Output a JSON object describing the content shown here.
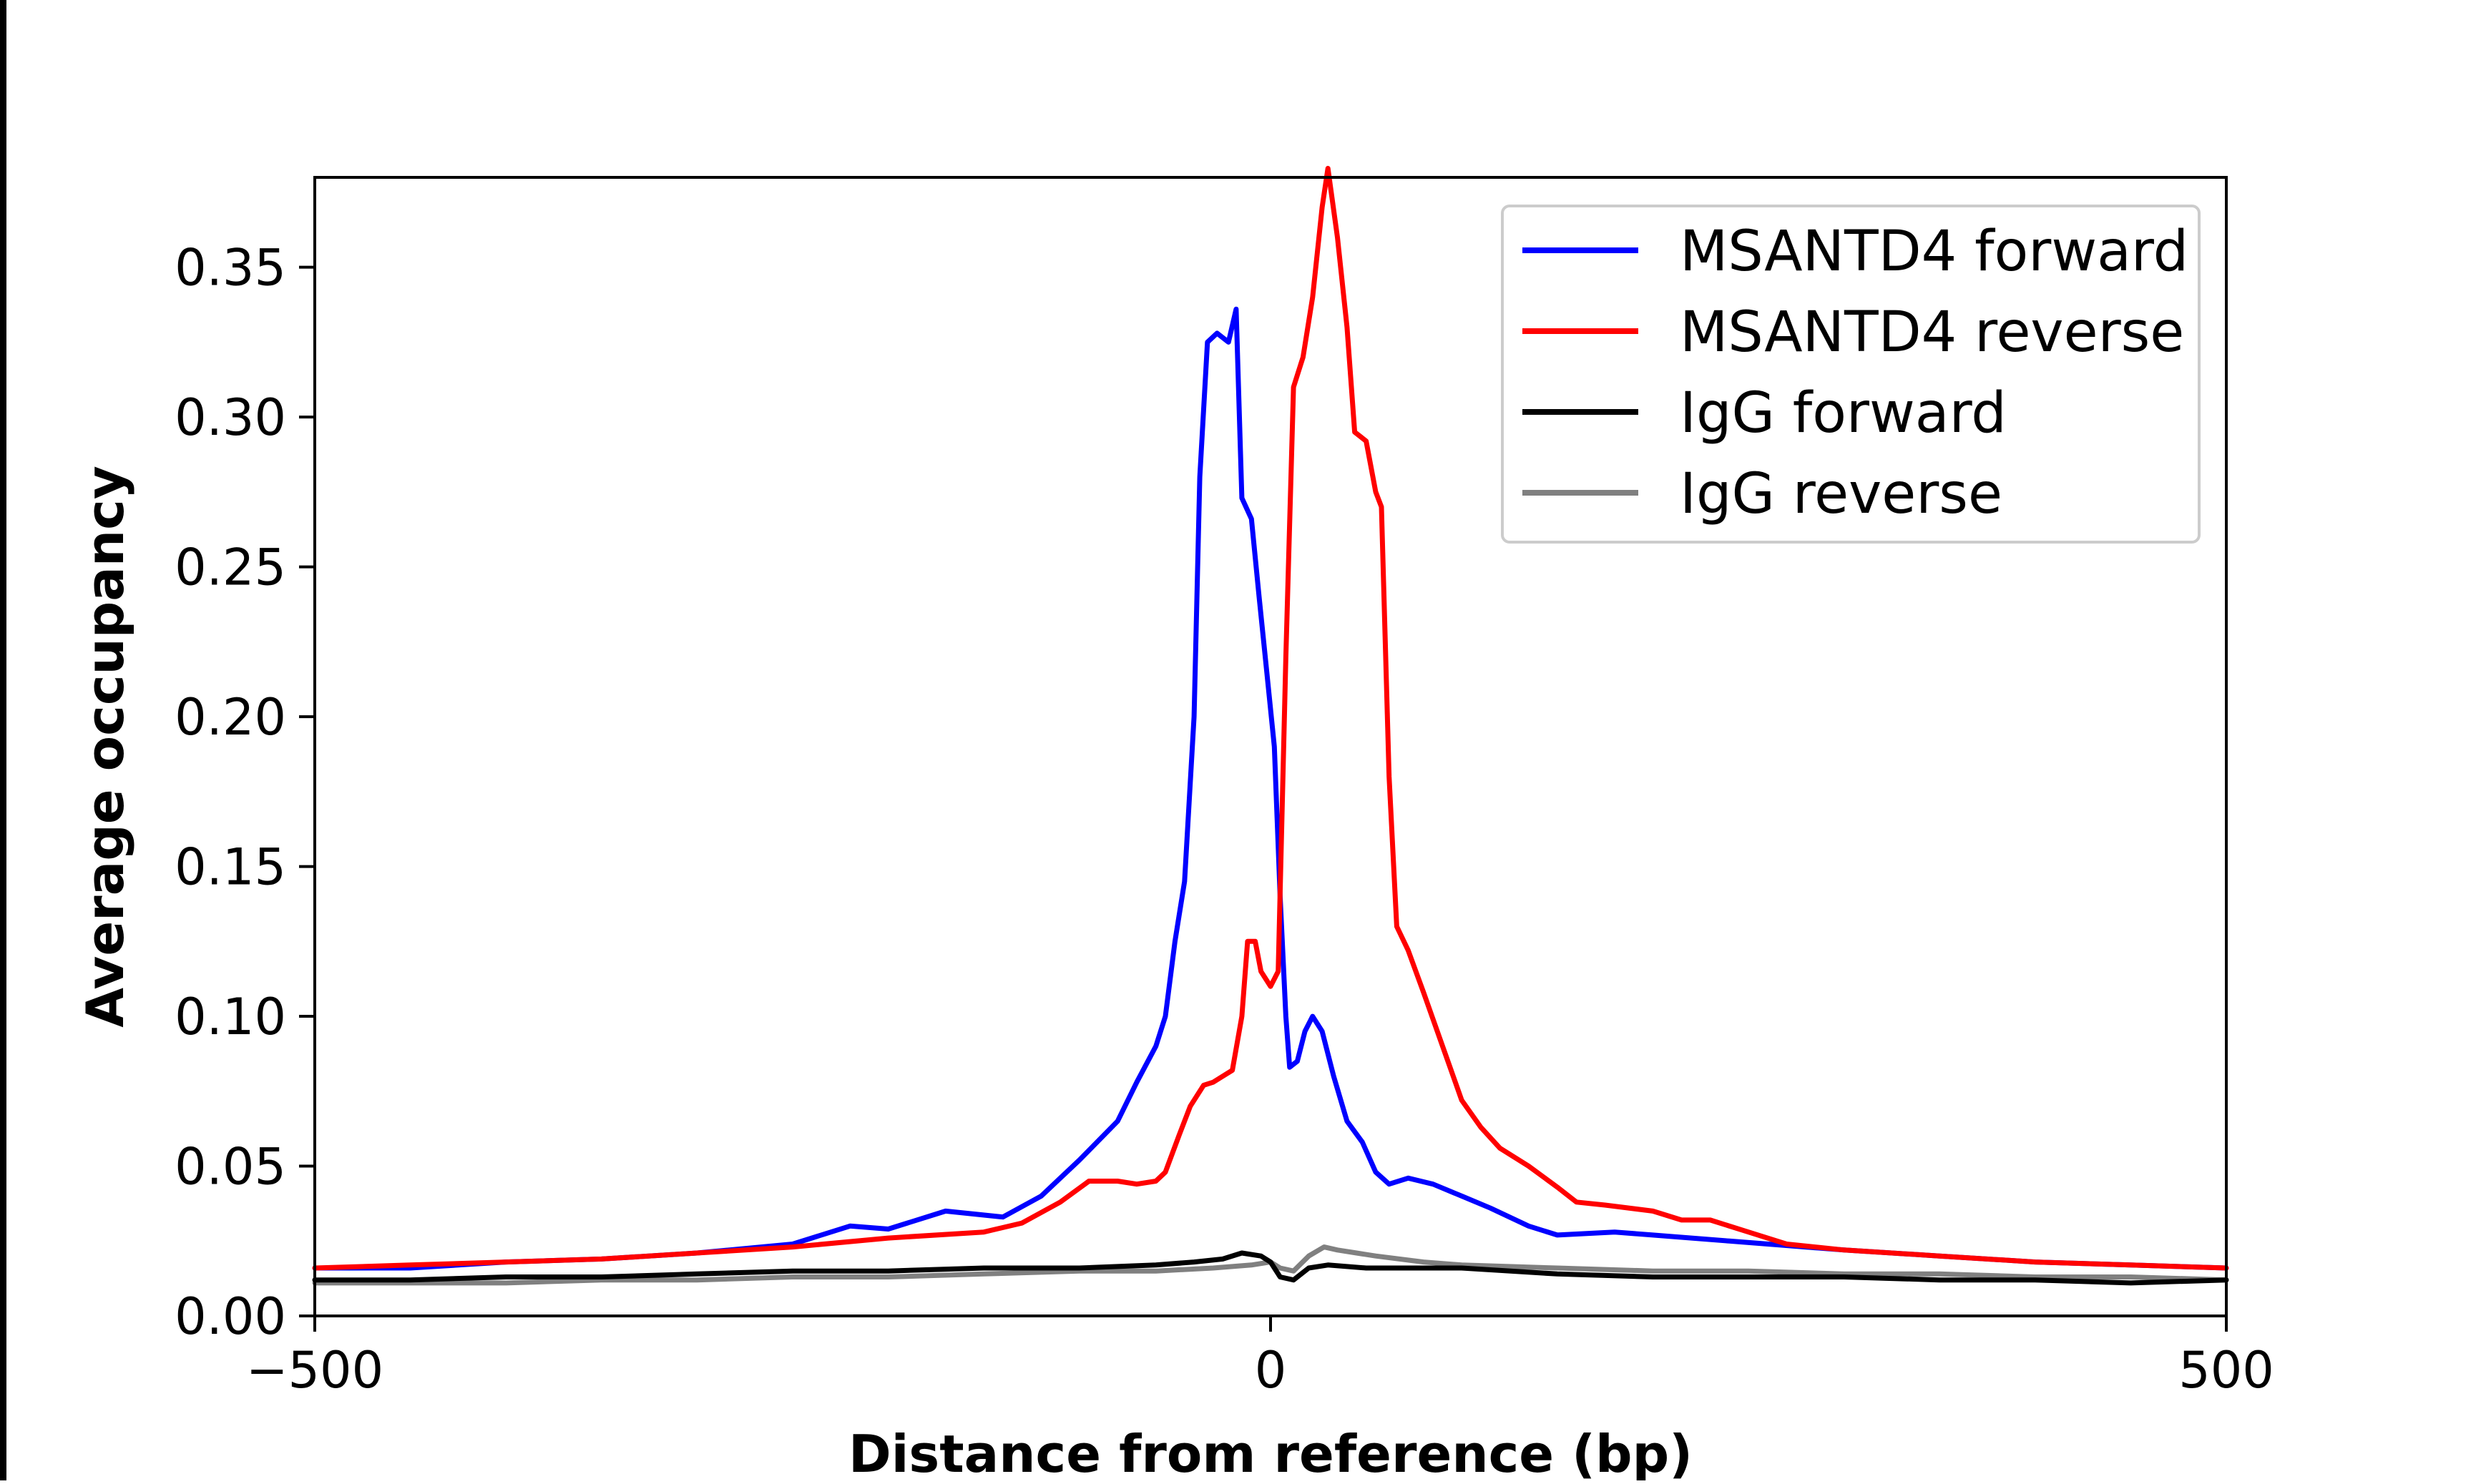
{
  "chart_data": {
    "type": "line",
    "title": "",
    "xlabel": "Distance from reference (bp)",
    "ylabel": "Average occupancy",
    "xlim": [
      -500,
      500
    ],
    "ylim": [
      0,
      0.38
    ],
    "xticks": [
      -500,
      0,
      500
    ],
    "xtick_labels": [
      "−500",
      "0",
      "500"
    ],
    "yticks": [
      0,
      0.05,
      0.1,
      0.15,
      0.2,
      0.25,
      0.3,
      0.35
    ],
    "ytick_labels": [
      "0.00",
      "0.05",
      "0.10",
      "0.15",
      "0.20",
      "0.25",
      "0.30",
      "0.35"
    ],
    "grid": false,
    "legend_position": "top-right",
    "series": [
      {
        "name": "MSANTD4 forward",
        "color": "#0000ff",
        "points": [
          [
            -500,
            0.016
          ],
          [
            -450,
            0.016
          ],
          [
            -400,
            0.018
          ],
          [
            -350,
            0.019
          ],
          [
            -300,
            0.021
          ],
          [
            -250,
            0.024
          ],
          [
            -220,
            0.03
          ],
          [
            -200,
            0.029
          ],
          [
            -170,
            0.035
          ],
          [
            -140,
            0.033
          ],
          [
            -120,
            0.04
          ],
          [
            -100,
            0.052
          ],
          [
            -80,
            0.065
          ],
          [
            -70,
            0.078
          ],
          [
            -60,
            0.09
          ],
          [
            -55,
            0.1
          ],
          [
            -50,
            0.125
          ],
          [
            -45,
            0.145
          ],
          [
            -40,
            0.2
          ],
          [
            -37,
            0.28
          ],
          [
            -33,
            0.325
          ],
          [
            -28,
            0.328
          ],
          [
            -22,
            0.325
          ],
          [
            -18,
            0.336
          ],
          [
            -15,
            0.273
          ],
          [
            -10,
            0.266
          ],
          [
            -6,
            0.24
          ],
          [
            -2,
            0.215
          ],
          [
            2,
            0.19
          ],
          [
            5,
            0.14
          ],
          [
            8,
            0.1
          ],
          [
            10,
            0.083
          ],
          [
            14,
            0.085
          ],
          [
            18,
            0.095
          ],
          [
            22,
            0.1
          ],
          [
            27,
            0.095
          ],
          [
            33,
            0.08
          ],
          [
            40,
            0.065
          ],
          [
            48,
            0.058
          ],
          [
            55,
            0.048
          ],
          [
            62,
            0.044
          ],
          [
            72,
            0.046
          ],
          [
            85,
            0.044
          ],
          [
            100,
            0.04
          ],
          [
            115,
            0.036
          ],
          [
            135,
            0.03
          ],
          [
            150,
            0.027
          ],
          [
            180,
            0.028
          ],
          [
            200,
            0.027
          ],
          [
            240,
            0.025
          ],
          [
            300,
            0.022
          ],
          [
            350,
            0.02
          ],
          [
            400,
            0.018
          ],
          [
            450,
            0.017
          ],
          [
            500,
            0.016
          ]
        ]
      },
      {
        "name": "MSANTD4 reverse",
        "color": "#ff0000",
        "points": [
          [
            -500,
            0.016
          ],
          [
            -450,
            0.017
          ],
          [
            -400,
            0.018
          ],
          [
            -350,
            0.019
          ],
          [
            -300,
            0.021
          ],
          [
            -250,
            0.023
          ],
          [
            -200,
            0.026
          ],
          [
            -150,
            0.028
          ],
          [
            -130,
            0.031
          ],
          [
            -110,
            0.038
          ],
          [
            -95,
            0.045
          ],
          [
            -80,
            0.045
          ],
          [
            -70,
            0.044
          ],
          [
            -60,
            0.045
          ],
          [
            -55,
            0.048
          ],
          [
            -48,
            0.06
          ],
          [
            -42,
            0.07
          ],
          [
            -35,
            0.077
          ],
          [
            -30,
            0.078
          ],
          [
            -25,
            0.08
          ],
          [
            -20,
            0.082
          ],
          [
            -15,
            0.1
          ],
          [
            -12,
            0.125
          ],
          [
            -8,
            0.125
          ],
          [
            -5,
            0.115
          ],
          [
            0,
            0.11
          ],
          [
            4,
            0.115
          ],
          [
            8,
            0.22
          ],
          [
            12,
            0.31
          ],
          [
            17,
            0.32
          ],
          [
            22,
            0.34
          ],
          [
            27,
            0.37
          ],
          [
            30,
            0.383
          ],
          [
            35,
            0.36
          ],
          [
            40,
            0.33
          ],
          [
            44,
            0.295
          ],
          [
            50,
            0.292
          ],
          [
            55,
            0.275
          ],
          [
            58,
            0.27
          ],
          [
            62,
            0.18
          ],
          [
            66,
            0.13
          ],
          [
            72,
            0.122
          ],
          [
            80,
            0.108
          ],
          [
            90,
            0.09
          ],
          [
            100,
            0.072
          ],
          [
            110,
            0.063
          ],
          [
            120,
            0.056
          ],
          [
            135,
            0.05
          ],
          [
            150,
            0.043
          ],
          [
            160,
            0.038
          ],
          [
            175,
            0.037
          ],
          [
            200,
            0.035
          ],
          [
            215,
            0.032
          ],
          [
            230,
            0.032
          ],
          [
            250,
            0.028
          ],
          [
            270,
            0.024
          ],
          [
            300,
            0.022
          ],
          [
            350,
            0.02
          ],
          [
            400,
            0.018
          ],
          [
            450,
            0.017
          ],
          [
            500,
            0.016
          ]
        ]
      },
      {
        "name": "IgG forward",
        "color": "#000000",
        "points": [
          [
            -500,
            0.012
          ],
          [
            -450,
            0.012
          ],
          [
            -400,
            0.013
          ],
          [
            -350,
            0.013
          ],
          [
            -300,
            0.014
          ],
          [
            -250,
            0.015
          ],
          [
            -200,
            0.015
          ],
          [
            -150,
            0.016
          ],
          [
            -100,
            0.016
          ],
          [
            -60,
            0.017
          ],
          [
            -40,
            0.018
          ],
          [
            -25,
            0.019
          ],
          [
            -15,
            0.021
          ],
          [
            -5,
            0.02
          ],
          [
            0,
            0.018
          ],
          [
            5,
            0.013
          ],
          [
            12,
            0.012
          ],
          [
            20,
            0.016
          ],
          [
            30,
            0.017
          ],
          [
            50,
            0.016
          ],
          [
            80,
            0.016
          ],
          [
            100,
            0.016
          ],
          [
            150,
            0.014
          ],
          [
            200,
            0.013
          ],
          [
            250,
            0.013
          ],
          [
            300,
            0.013
          ],
          [
            350,
            0.012
          ],
          [
            400,
            0.012
          ],
          [
            450,
            0.011
          ],
          [
            500,
            0.012
          ]
        ]
      },
      {
        "name": "IgG reverse",
        "color": "#808080",
        "points": [
          [
            -500,
            0.011
          ],
          [
            -450,
            0.011
          ],
          [
            -400,
            0.011
          ],
          [
            -350,
            0.012
          ],
          [
            -300,
            0.012
          ],
          [
            -250,
            0.013
          ],
          [
            -200,
            0.013
          ],
          [
            -150,
            0.014
          ],
          [
            -100,
            0.015
          ],
          [
            -60,
            0.015
          ],
          [
            -30,
            0.016
          ],
          [
            -10,
            0.017
          ],
          [
            0,
            0.018
          ],
          [
            5,
            0.016
          ],
          [
            12,
            0.015
          ],
          [
            20,
            0.02
          ],
          [
            28,
            0.023
          ],
          [
            35,
            0.022
          ],
          [
            45,
            0.021
          ],
          [
            55,
            0.02
          ],
          [
            80,
            0.018
          ],
          [
            100,
            0.017
          ],
          [
            150,
            0.016
          ],
          [
            200,
            0.015
          ],
          [
            250,
            0.015
          ],
          [
            300,
            0.014
          ],
          [
            350,
            0.014
          ],
          [
            400,
            0.013
          ],
          [
            450,
            0.013
          ],
          [
            500,
            0.012
          ]
        ]
      }
    ]
  }
}
